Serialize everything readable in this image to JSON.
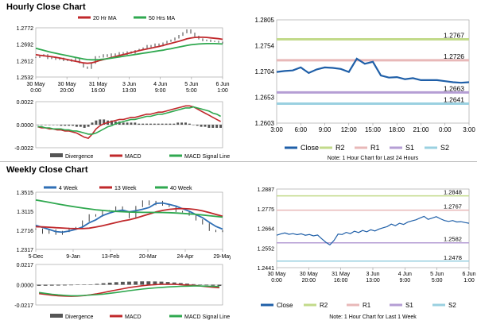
{
  "sections": {
    "hourly_title": "Hourly Close Chart",
    "weekly_title": "Weekly Close Chart"
  },
  "colors": {
    "close": "#1f5fa8",
    "ma20": "#c0282b",
    "ma50": "#2fa84f",
    "r2": "#c2da8a",
    "r1": "#e8b8b8",
    "s1": "#b59ed4",
    "s2": "#9ad0e0",
    "divergence": "#555555",
    "macd": "#c0282b",
    "signal": "#2fa84f",
    "ma4": "#2f6fb5",
    "ma13": "#c0282b",
    "ma40": "#2fa84f"
  },
  "chart_data": [
    {
      "id": "hourly_price",
      "type": "line",
      "legend": [
        "20 Hr MA",
        "50 Hrs MA"
      ],
      "yticks": [
        "1.2772",
        "1.2692",
        "1.2612",
        "1.2532"
      ],
      "ylim": [
        1.2532,
        1.2772
      ],
      "xticks": [
        "30 May\n0:00",
        "30 May\n20:00",
        "31 May\n16:00",
        "3 Jun\n13:00",
        "4 Jun\n9:00",
        "5 Jun\n5:00",
        "6 Jun\n1:00"
      ],
      "close": [
        1.2628,
        1.2634,
        1.2641,
        1.2622,
        1.2629,
        1.2618,
        1.2624,
        1.2612,
        1.2617,
        1.2609,
        1.2622,
        1.2601,
        1.2581,
        1.2574,
        1.2599,
        1.2631,
        1.2629,
        1.2641,
        1.2632,
        1.2645,
        1.2638,
        1.2651,
        1.2643,
        1.2655,
        1.2648,
        1.2661,
        1.2667,
        1.2674,
        1.2686,
        1.2678,
        1.2693,
        1.2684,
        1.2698,
        1.2706,
        1.2712,
        1.2722,
        1.2735,
        1.2748,
        1.2762,
        1.2746,
        1.2731,
        1.2718,
        1.2709,
        1.2712,
        1.2705,
        1.2706,
        1.2702,
        1.2698
      ],
      "ma20": [
        1.2641,
        1.2638,
        1.2636,
        1.2633,
        1.2631,
        1.2628,
        1.2625,
        1.2621,
        1.2617,
        1.2613,
        1.2609,
        1.2605,
        1.2601,
        1.2599,
        1.2601,
        1.2606,
        1.2612,
        1.2617,
        1.2622,
        1.2627,
        1.2632,
        1.2637,
        1.2641,
        1.2646,
        1.2651,
        1.2656,
        1.2661,
        1.2665,
        1.2669,
        1.2673,
        1.2677,
        1.2681,
        1.2686,
        1.2691,
        1.2696,
        1.2701,
        1.2706,
        1.2712,
        1.2718,
        1.2722,
        1.2725,
        1.2726,
        1.2726,
        1.2725,
        1.2723,
        1.2721,
        1.2719,
        1.2716
      ],
      "ma50": [
        1.2672,
        1.2667,
        1.2662,
        1.2657,
        1.2652,
        1.2648,
        1.2644,
        1.264,
        1.2636,
        1.2632,
        1.2628,
        1.2624,
        1.262,
        1.2617,
        1.2616,
        1.2616,
        1.2617,
        1.2619,
        1.2621,
        1.2624,
        1.2627,
        1.263,
        1.2633,
        1.2636,
        1.2639,
        1.2642,
        1.2645,
        1.2648,
        1.2651,
        1.2654,
        1.2657,
        1.266,
        1.2663,
        1.2667,
        1.267,
        1.2674,
        1.2678,
        1.2682,
        1.2686,
        1.2689,
        1.2691,
        1.2693,
        1.2694,
        1.2695,
        1.2695,
        1.2695,
        1.2694,
        1.2693
      ]
    },
    {
      "id": "hourly_macd",
      "type": "bar",
      "legend": [
        "Divergence",
        "MACD",
        "MACD Signal Line"
      ],
      "yticks": [
        "0.0022",
        "0.0000",
        "-0.0022"
      ],
      "ylim": [
        -0.0022,
        0.0022
      ],
      "divergence": [
        0,
        0,
        0,
        0,
        0,
        0,
        -0.0001,
        -0.0001,
        -0.0001,
        -0.0001,
        -0.0002,
        -0.0002,
        -0.0003,
        -0.0002,
        0.0002,
        0.0004,
        0.0005,
        0.0005,
        0.0004,
        0.0004,
        0.0003,
        0.0003,
        0.0002,
        0.0002,
        0.0002,
        0.0002,
        0.0001,
        0.0001,
        0.0001,
        0.0001,
        0.0001,
        0.0001,
        0.0001,
        0.0001,
        0.0001,
        0.0001,
        0.0002,
        0.0002,
        0.0002,
        0.0001,
        0,
        -0.0001,
        -0.0002,
        -0.0002,
        -0.0003,
        -0.0003,
        -0.0003,
        -0.0003
      ],
      "macd": [
        -0.0002,
        -0.0003,
        -0.0003,
        -0.0004,
        -0.0004,
        -0.0005,
        -0.0005,
        -0.0006,
        -0.0006,
        -0.0007,
        -0.0008,
        -0.001,
        -0.0012,
        -0.0013,
        -0.0009,
        -0.0004,
        -0.0001,
        0.0001,
        0.0002,
        0.0003,
        0.0004,
        0.0005,
        0.0005,
        0.0006,
        0.0007,
        0.0007,
        0.0008,
        0.0009,
        0.001,
        0.001,
        0.0011,
        0.0012,
        0.0012,
        0.0013,
        0.0014,
        0.0015,
        0.0016,
        0.0017,
        0.0018,
        0.0018,
        0.0017,
        0.0015,
        0.0013,
        0.0011,
        0.0009,
        0.0007,
        0.0005,
        0.0003
      ],
      "signal": [
        -0.0002,
        -0.0002,
        -0.0003,
        -0.0003,
        -0.0004,
        -0.0004,
        -0.0004,
        -0.0005,
        -0.0005,
        -0.0006,
        -0.0006,
        -0.0007,
        -0.0008,
        -0.0009,
        -0.0009,
        -0.0008,
        -0.0006,
        -0.0004,
        -0.0002,
        -0.0001,
        0.0001,
        0.0002,
        0.0003,
        0.0004,
        0.0005,
        0.0005,
        0.0006,
        0.0007,
        0.0008,
        0.0008,
        0.0009,
        0.001,
        0.001,
        0.0011,
        0.0012,
        0.0013,
        0.0014,
        0.0015,
        0.0016,
        0.0016,
        0.0017,
        0.0016,
        0.0015,
        0.0014,
        0.0013,
        0.0011,
        0.001,
        0.0008
      ]
    },
    {
      "id": "last24h",
      "type": "line",
      "yticks": [
        "1.2805",
        "1.2754",
        "1.2704",
        "1.2653",
        "1.2603"
      ],
      "ylim": [
        1.2603,
        1.2805
      ],
      "xticks": [
        "3:00",
        "6:00",
        "9:00",
        "12:00",
        "15:00",
        "18:00",
        "21:00",
        "0:00",
        "3:00"
      ],
      "legend": [
        "Close",
        "R2",
        "R1",
        "S1",
        "S2"
      ],
      "levels": {
        "R2": 1.2767,
        "R1": 1.2726,
        "S1": 1.2663,
        "S2": 1.2641
      },
      "level_labels": {
        "R2": "1.2767",
        "R1": "1.2726",
        "S1": "1.2663",
        "S2": "1.2641"
      },
      "close": [
        1.2703,
        1.2705,
        1.2706,
        1.2712,
        1.2701,
        1.2708,
        1.2712,
        1.2711,
        1.2709,
        1.2703,
        1.2729,
        1.2719,
        1.2723,
        1.2696,
        1.2692,
        1.2693,
        1.2689,
        1.2691,
        1.2687,
        1.2687,
        1.2687,
        1.2685,
        1.2683,
        1.2682,
        1.2683
      ],
      "note": "Note: 1 Hour Chart for Last 24 Hours"
    },
    {
      "id": "weekly_price",
      "type": "line",
      "legend": [
        "4 Week",
        "13 Week",
        "40 Week"
      ],
      "yticks": [
        "1.3515",
        "1.3115",
        "1.2716",
        "1.2317"
      ],
      "ylim": [
        1.2317,
        1.3515
      ],
      "xticks": [
        "5-Dec",
        "9-Jan",
        "13-Feb",
        "20-Mar",
        "24-Apr",
        "29-May"
      ],
      "close": [
        1.2742,
        1.2656,
        1.2724,
        1.2634,
        1.2691,
        1.2758,
        1.2776,
        1.2911,
        1.3041,
        1.3015,
        1.3128,
        1.3118,
        1.3205,
        1.3105,
        1.2982,
        1.3215,
        1.3331,
        1.3255,
        1.3322,
        1.3245,
        1.3215,
        1.3112,
        1.3102,
        1.3035,
        1.2935,
        1.2851,
        1.2715,
        1.2691,
        1.2709
      ],
      "ma4": [
        1.2821,
        1.2779,
        1.2735,
        1.2689,
        1.2676,
        1.2702,
        1.2737,
        1.2787,
        1.2872,
        1.2936,
        1.3024,
        1.3075,
        1.3117,
        1.3139,
        1.3102,
        1.3125,
        1.3158,
        1.3196,
        1.3281,
        1.3288,
        1.3259,
        1.3224,
        1.3169,
        1.3117,
        1.3046,
        1.2981,
        1.2884,
        1.2798,
        1.2741
      ],
      "ma13": [
        1.2792,
        1.2788,
        1.2781,
        1.2772,
        1.2764,
        1.2757,
        1.2752,
        1.2751,
        1.2762,
        1.2784,
        1.2812,
        1.2846,
        1.288,
        1.2912,
        1.2937,
        1.2972,
        1.3016,
        1.3058,
        1.3101,
        1.3132,
        1.3155,
        1.3168,
        1.3172,
        1.3166,
        1.3151,
        1.3124,
        1.3089,
        1.3049,
        1.3012
      ],
      "ma40": [
        1.3352,
        1.3328,
        1.3302,
        1.3276,
        1.3251,
        1.3227,
        1.3205,
        1.3184,
        1.3165,
        1.3148,
        1.3134,
        1.3122,
        1.3112,
        1.3105,
        1.3099,
        1.3095,
        1.3093,
        1.3092,
        1.3091,
        1.3089,
        1.3085,
        1.3079,
        1.3071,
        1.3061,
        1.305,
        1.3037,
        1.3023,
        1.3008,
        1.2992
      ]
    },
    {
      "id": "weekly_macd",
      "type": "bar",
      "legend": [
        "Divergence",
        "MACD",
        "MACD Signal Line"
      ],
      "yticks": [
        "0.0217",
        "0.0000",
        "-0.0217"
      ],
      "ylim": [
        -0.0217,
        0.0217
      ],
      "divergence": [
        -0.0012,
        -0.0011,
        -0.001,
        -0.0009,
        -0.0008,
        -0.0006,
        -0.0004,
        -0.0002,
        0.0003,
        0.0009,
        0.0016,
        0.0022,
        0.0027,
        0.0031,
        0.0033,
        0.0035,
        0.0036,
        0.0036,
        0.0035,
        0.0033,
        0.0029,
        0.0024,
        0.0018,
        0.0012,
        0.0006,
        0,
        -0.0006,
        -0.001,
        -0.0013
      ],
      "macd": [
        -0.0095,
        -0.0104,
        -0.0112,
        -0.0118,
        -0.0122,
        -0.0124,
        -0.0122,
        -0.0117,
        -0.0108,
        -0.0097,
        -0.0084,
        -0.007,
        -0.0056,
        -0.0043,
        -0.0031,
        -0.002,
        -0.0011,
        -0.0004,
        0.0001,
        0.0004,
        0.0005,
        0.0004,
        0.0001,
        -0.0003,
        -0.0008,
        -0.0014,
        -0.0021,
        -0.0027,
        -0.0032
      ],
      "signal": [
        -0.0083,
        -0.0093,
        -0.0102,
        -0.0109,
        -0.0114,
        -0.0118,
        -0.0118,
        -0.0115,
        -0.0111,
        -0.0106,
        -0.01,
        -0.0092,
        -0.0083,
        -0.0074,
        -0.0064,
        -0.0055,
        -0.0047,
        -0.004,
        -0.0034,
        -0.0029,
        -0.0024,
        -0.002,
        -0.0017,
        -0.0015,
        -0.0014,
        -0.0014,
        -0.0015,
        -0.0017,
        -0.0019
      ]
    },
    {
      "id": "lastweek",
      "type": "line",
      "yticks": [
        "1.2887",
        "1.2775",
        "1.2664",
        "1.2552",
        "1.2441"
      ],
      "ylim": [
        1.2441,
        1.2887
      ],
      "xticks": [
        "30 May\n0:00",
        "30 May\n20:00",
        "31 May\n16:00",
        "3 Jun\n13:00",
        "4 Jun\n9:00",
        "5 Jun\n5:00",
        "6 Jun\n1:00"
      ],
      "legend": [
        "Close",
        "R2",
        "R1",
        "S1",
        "S2"
      ],
      "levels": {
        "R2": 1.2848,
        "R1": 1.2767,
        "S1": 1.2582,
        "S2": 1.2478
      },
      "level_labels": {
        "R2": "1.2848",
        "R1": "1.2767",
        "S1": "1.2582",
        "S2": "1.2478"
      },
      "close": [
        1.2625,
        1.2632,
        1.2638,
        1.263,
        1.2634,
        1.2628,
        1.2633,
        1.2625,
        1.2629,
        1.2621,
        1.2626,
        1.2605,
        1.2585,
        1.257,
        1.2595,
        1.2631,
        1.2629,
        1.2641,
        1.2634,
        1.2648,
        1.264,
        1.2652,
        1.2644,
        1.2656,
        1.2649,
        1.266,
        1.2667,
        1.2674,
        1.2688,
        1.2679,
        1.2693,
        1.2686,
        1.2699,
        1.2706,
        1.2712,
        1.2722,
        1.2732,
        1.2715,
        1.2722,
        1.273,
        1.2718,
        1.2708,
        1.2703,
        1.2708,
        1.27,
        1.2702,
        1.2697,
        1.2693
      ],
      "note": "Note: 1 Hour Chart for Last 1 Week"
    }
  ]
}
